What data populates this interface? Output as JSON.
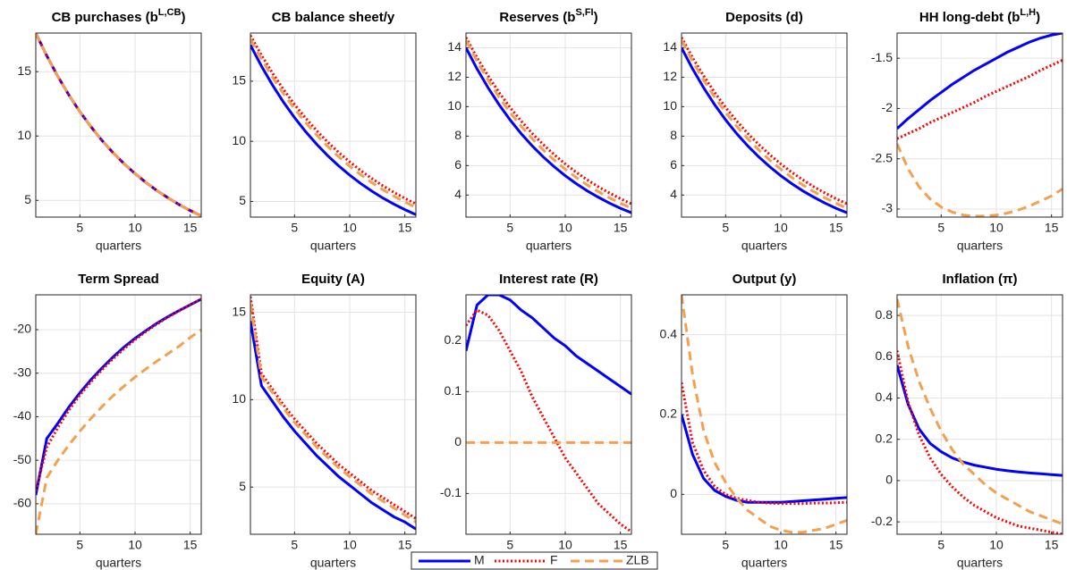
{
  "chart_data": [
    {
      "type": "line",
      "title": "CB purchases (b",
      "title_sup": "L,CB",
      "title_end": ")",
      "xlabel": "quarters",
      "x": [
        1,
        2,
        3,
        4,
        5,
        6,
        7,
        8,
        9,
        10,
        11,
        12,
        13,
        14,
        15,
        16
      ],
      "xlim": [
        1,
        16
      ],
      "xticks": [
        5,
        10,
        15
      ],
      "ylim": [
        3.7,
        18
      ],
      "yticks": [
        5,
        10,
        15
      ],
      "grid": true,
      "series": [
        {
          "name": "M",
          "color": "#0000ff",
          "values": [
            18,
            16.23,
            14.63,
            13.19,
            11.89,
            10.72,
            9.66,
            8.71,
            7.85,
            7.08,
            6.38,
            5.75,
            5.19,
            4.67,
            4.21,
            3.8
          ]
        },
        {
          "name": "F",
          "color": "#ff0000",
          "values": [
            18,
            16.23,
            14.63,
            13.19,
            11.89,
            10.72,
            9.66,
            8.71,
            7.85,
            7.08,
            6.38,
            5.75,
            5.19,
            4.67,
            4.21,
            3.8
          ]
        },
        {
          "name": "ZLB",
          "color": "#f4a04f",
          "values": [
            18,
            16.23,
            14.63,
            13.19,
            11.89,
            10.72,
            9.66,
            8.71,
            7.85,
            7.08,
            6.38,
            5.75,
            5.19,
            4.67,
            4.21,
            3.8
          ]
        }
      ]
    },
    {
      "type": "line",
      "title": "CB balance sheet/y",
      "xlabel": "quarters",
      "x": [
        1,
        2,
        3,
        4,
        5,
        6,
        7,
        8,
        9,
        10,
        11,
        12,
        13,
        14,
        15,
        16
      ],
      "xlim": [
        1,
        16
      ],
      "xticks": [
        5,
        10,
        15
      ],
      "ylim": [
        3.7,
        19
      ],
      "yticks": [
        5,
        10,
        15
      ],
      "grid": true,
      "series": [
        {
          "name": "M",
          "color": "#0000ff",
          "values": [
            18,
            16.25,
            14.68,
            13.25,
            11.97,
            10.81,
            9.76,
            8.81,
            7.96,
            7.19,
            6.49,
            5.86,
            5.29,
            4.78,
            4.32,
            3.9
          ]
        },
        {
          "name": "F",
          "color": "#ff0000",
          "values": [
            18.8,
            17.16,
            15.67,
            14.31,
            13.06,
            11.93,
            10.89,
            9.94,
            9.08,
            8.29,
            7.57,
            6.91,
            6.31,
            5.76,
            5.26,
            4.8
          ]
        },
        {
          "name": "ZLB",
          "color": "#f4a04f",
          "values": [
            18.5,
            16.84,
            15.33,
            13.95,
            12.7,
            11.56,
            10.52,
            9.58,
            8.72,
            7.93,
            7.22,
            6.57,
            5.98,
            5.45,
            4.96,
            4.5
          ]
        }
      ]
    },
    {
      "type": "line",
      "title": "Reserves (b",
      "title_sup": "S,FI",
      "title_end": ")",
      "xlabel": "quarters",
      "x": [
        1,
        2,
        3,
        4,
        5,
        6,
        7,
        8,
        9,
        10,
        11,
        12,
        13,
        14,
        15,
        16
      ],
      "xlim": [
        1,
        16
      ],
      "xticks": [
        5,
        10,
        15
      ],
      "ylim": [
        2.5,
        15
      ],
      "yticks": [
        4,
        6,
        8,
        10,
        12,
        14
      ],
      "grid": true,
      "series": [
        {
          "name": "M",
          "color": "#0000ff",
          "values": [
            14,
            12.57,
            11.29,
            10.14,
            9.1,
            8.17,
            7.34,
            6.59,
            5.92,
            5.31,
            4.77,
            4.28,
            3.85,
            3.45,
            3.1,
            2.8
          ]
        },
        {
          "name": "F",
          "color": "#ff0000",
          "values": [
            14.7,
            13.33,
            12.1,
            10.97,
            9.95,
            9.03,
            8.19,
            7.43,
            6.74,
            6.11,
            5.54,
            5.03,
            4.56,
            4.14,
            3.75,
            3.4
          ]
        },
        {
          "name": "ZLB",
          "color": "#f4a04f",
          "values": [
            14.5,
            13.08,
            11.81,
            10.65,
            9.61,
            8.67,
            7.83,
            7.06,
            6.37,
            5.75,
            5.19,
            4.68,
            4.23,
            3.81,
            3.44,
            3.1
          ]
        }
      ]
    },
    {
      "type": "line",
      "title": "Deposits (d)",
      "xlabel": "quarters",
      "x": [
        1,
        2,
        3,
        4,
        5,
        6,
        7,
        8,
        9,
        10,
        11,
        12,
        13,
        14,
        15,
        16
      ],
      "xlim": [
        1,
        16
      ],
      "xticks": [
        5,
        10,
        15
      ],
      "ylim": [
        2.5,
        15
      ],
      "yticks": [
        4,
        6,
        8,
        10,
        12,
        14
      ],
      "grid": true,
      "series": [
        {
          "name": "M",
          "color": "#0000ff",
          "values": [
            14,
            12.57,
            11.29,
            10.14,
            9.1,
            8.17,
            7.34,
            6.59,
            5.92,
            5.31,
            4.77,
            4.28,
            3.85,
            3.45,
            3.1,
            2.8
          ]
        },
        {
          "name": "F",
          "color": "#ff0000",
          "values": [
            14.7,
            13.33,
            12.1,
            10.97,
            9.95,
            9.03,
            8.19,
            7.43,
            6.74,
            6.11,
            5.54,
            5.03,
            4.56,
            4.14,
            3.75,
            3.4
          ]
        },
        {
          "name": "ZLB",
          "color": "#f4a04f",
          "values": [
            14.5,
            13.08,
            11.81,
            10.65,
            9.61,
            8.67,
            7.83,
            7.06,
            6.37,
            5.75,
            5.19,
            4.68,
            4.23,
            3.81,
            3.44,
            3.1
          ]
        }
      ]
    },
    {
      "type": "line",
      "title": "HH long-debt (b",
      "title_sup": "L,H",
      "title_end": ")",
      "xlabel": "quarters",
      "x": [
        1,
        2,
        3,
        4,
        5,
        6,
        7,
        8,
        9,
        10,
        11,
        12,
        13,
        14,
        15,
        16
      ],
      "xlim": [
        1,
        16
      ],
      "xticks": [
        5,
        10,
        15
      ],
      "ylim": [
        -3.08,
        -1.25
      ],
      "yticks": [
        -3,
        -2.5,
        -2,
        -1.5
      ],
      "grid": true,
      "series": [
        {
          "name": "M",
          "color": "#0000ff",
          "values": [
            -2.2,
            -2.1,
            -2.01,
            -1.92,
            -1.84,
            -1.76,
            -1.69,
            -1.62,
            -1.56,
            -1.5,
            -1.44,
            -1.39,
            -1.34,
            -1.3,
            -1.27,
            -1.25
          ]
        },
        {
          "name": "F",
          "color": "#ff0000",
          "values": [
            -2.3,
            -2.25,
            -2.2,
            -2.14,
            -2.09,
            -2.04,
            -1.99,
            -1.94,
            -1.88,
            -1.83,
            -1.78,
            -1.73,
            -1.68,
            -1.62,
            -1.57,
            -1.52
          ]
        },
        {
          "name": "ZLB",
          "color": "#f4a04f",
          "values": [
            -2.35,
            -2.6,
            -2.78,
            -2.9,
            -2.98,
            -3.03,
            -3.06,
            -3.07,
            -3.07,
            -3.06,
            -3.04,
            -3.01,
            -2.97,
            -2.92,
            -2.87,
            -2.8
          ]
        }
      ]
    },
    {
      "type": "line",
      "title": "Term Spread",
      "xlabel": "quarters",
      "x": [
        1,
        2,
        3,
        4,
        5,
        6,
        7,
        8,
        9,
        10,
        11,
        12,
        13,
        14,
        15,
        16
      ],
      "xlim": [
        1,
        16
      ],
      "xticks": [
        5,
        10,
        15
      ],
      "ylim": [
        -67,
        -12
      ],
      "yticks": [
        -60,
        -50,
        -40,
        -30,
        -20
      ],
      "grid": true,
      "series": [
        {
          "name": "M",
          "color": "#0000ff",
          "values": [
            -58,
            -45,
            -41.5,
            -37.8,
            -34.5,
            -31.5,
            -28.8,
            -26.3,
            -24,
            -22,
            -20.2,
            -18.5,
            -17,
            -15.6,
            -14.3,
            -13
          ]
        },
        {
          "name": "F",
          "color": "#ff0000",
          "values": [
            -57,
            -47,
            -42.5,
            -38.5,
            -35,
            -32,
            -29.2,
            -26.7,
            -24.4,
            -22.3,
            -20.4,
            -18.7,
            -17.1,
            -15.7,
            -14.3,
            -13
          ]
        },
        {
          "name": "ZLB",
          "color": "#f4a04f",
          "values": [
            -67,
            -54,
            -50,
            -46.5,
            -43.3,
            -40.4,
            -37.7,
            -35.2,
            -33,
            -30.9,
            -29,
            -27.2,
            -25.5,
            -23.8,
            -21.8,
            -20
          ]
        }
      ]
    },
    {
      "type": "line",
      "title": "Equity (A)",
      "xlabel": "quarters",
      "x": [
        1,
        2,
        3,
        4,
        5,
        6,
        7,
        8,
        9,
        10,
        11,
        12,
        13,
        14,
        15,
        16
      ],
      "xlim": [
        1,
        16
      ],
      "xticks": [
        5,
        10,
        15
      ],
      "ylim": [
        2.3,
        16
      ],
      "yticks": [
        5,
        10,
        15
      ],
      "grid": true,
      "series": [
        {
          "name": "M",
          "color": "#0000ff",
          "values": [
            14.5,
            10.8,
            9.9,
            9,
            8.2,
            7.5,
            6.8,
            6.2,
            5.6,
            5.1,
            4.6,
            4.1,
            3.7,
            3.3,
            3,
            2.6
          ]
        },
        {
          "name": "F",
          "color": "#ff0000",
          "values": [
            15.9,
            11.5,
            10.6,
            9.7,
            8.9,
            8.2,
            7.5,
            6.9,
            6.3,
            5.8,
            5.3,
            4.8,
            4.4,
            4,
            3.6,
            3.2
          ]
        },
        {
          "name": "ZLB",
          "color": "#f4a04f",
          "values": [
            15.5,
            11.3,
            10.4,
            9.5,
            8.7,
            8,
            7.3,
            6.7,
            6.1,
            5.6,
            5.1,
            4.6,
            4.2,
            3.8,
            3.4,
            3
          ]
        }
      ]
    },
    {
      "type": "line",
      "title": "Interest rate (R)",
      "xlabel": "quarters",
      "x": [
        1,
        2,
        3,
        4,
        5,
        6,
        7,
        8,
        9,
        10,
        11,
        12,
        13,
        14,
        15,
        16
      ],
      "xlim": [
        1,
        16
      ],
      "xticks": [
        5,
        10,
        15
      ],
      "ylim": [
        -0.18,
        0.29
      ],
      "yticks": [
        -0.1,
        0,
        0.1,
        0.2
      ],
      "grid": true,
      "series": [
        {
          "name": "M",
          "color": "#0000ff",
          "values": [
            0.18,
            0.27,
            0.29,
            0.29,
            0.28,
            0.26,
            0.245,
            0.225,
            0.205,
            0.19,
            0.17,
            0.155,
            0.14,
            0.125,
            0.11,
            0.095
          ]
        },
        {
          "name": "F",
          "color": "#ff0000",
          "values": [
            0.23,
            0.26,
            0.25,
            0.22,
            0.18,
            0.14,
            0.09,
            0.05,
            0.01,
            -0.03,
            -0.06,
            -0.09,
            -0.12,
            -0.14,
            -0.16,
            -0.175
          ]
        },
        {
          "name": "ZLB",
          "color": "#f4a04f",
          "values": [
            0,
            0,
            0,
            0,
            0,
            0,
            0,
            0,
            0,
            0,
            0,
            0,
            0,
            0,
            0,
            0
          ]
        }
      ]
    },
    {
      "type": "line",
      "title": "Output (y)",
      "xlabel": "quarters",
      "x": [
        1,
        2,
        3,
        4,
        5,
        6,
        7,
        8,
        9,
        10,
        11,
        12,
        13,
        14,
        15,
        16
      ],
      "xlim": [
        1,
        16
      ],
      "xticks": [
        5,
        10,
        15
      ],
      "ylim": [
        -0.1,
        0.5
      ],
      "yticks": [
        0,
        0.2,
        0.4
      ],
      "grid": true,
      "series": [
        {
          "name": "M",
          "color": "#0000ff",
          "values": [
            0.2,
            0.1,
            0.04,
            0.01,
            -0.005,
            -0.015,
            -0.02,
            -0.02,
            -0.02,
            -0.02,
            -0.018,
            -0.016,
            -0.014,
            -0.012,
            -0.01,
            -0.008
          ]
        },
        {
          "name": "F",
          "color": "#ff0000",
          "values": [
            0.28,
            0.13,
            0.06,
            0.02,
            0,
            -0.01,
            -0.015,
            -0.02,
            -0.022,
            -0.023,
            -0.023,
            -0.023,
            -0.022,
            -0.022,
            -0.021,
            -0.02
          ]
        },
        {
          "name": "ZLB",
          "color": "#f4a04f",
          "values": [
            0.5,
            0.3,
            0.16,
            0.08,
            0.03,
            -0.01,
            -0.04,
            -0.06,
            -0.08,
            -0.09,
            -0.095,
            -0.095,
            -0.09,
            -0.085,
            -0.075,
            -0.065
          ]
        }
      ]
    },
    {
      "type": "line",
      "title": "Inflation (π)",
      "xlabel": "quarters",
      "x": [
        1,
        2,
        3,
        4,
        5,
        6,
        7,
        8,
        9,
        10,
        11,
        12,
        13,
        14,
        15,
        16
      ],
      "xlim": [
        1,
        16
      ],
      "xticks": [
        5,
        10,
        15
      ],
      "ylim": [
        -0.26,
        0.9
      ],
      "yticks": [
        -0.2,
        0,
        0.2,
        0.4,
        0.6,
        0.8
      ],
      "grid": true,
      "series": [
        {
          "name": "M",
          "color": "#0000ff",
          "values": [
            0.56,
            0.37,
            0.25,
            0.18,
            0.14,
            0.11,
            0.09,
            0.075,
            0.065,
            0.055,
            0.048,
            0.042,
            0.037,
            0.033,
            0.029,
            0.025
          ]
        },
        {
          "name": "F",
          "color": "#ff0000",
          "values": [
            0.63,
            0.38,
            0.22,
            0.11,
            0.03,
            -0.03,
            -0.08,
            -0.12,
            -0.15,
            -0.18,
            -0.2,
            -0.22,
            -0.23,
            -0.24,
            -0.25,
            -0.26
          ]
        },
        {
          "name": "ZLB",
          "color": "#f4a04f",
          "values": [
            0.88,
            0.65,
            0.48,
            0.35,
            0.24,
            0.15,
            0.08,
            0.03,
            -0.02,
            -0.06,
            -0.09,
            -0.12,
            -0.15,
            -0.17,
            -0.19,
            -0.21
          ]
        }
      ]
    }
  ]
}
